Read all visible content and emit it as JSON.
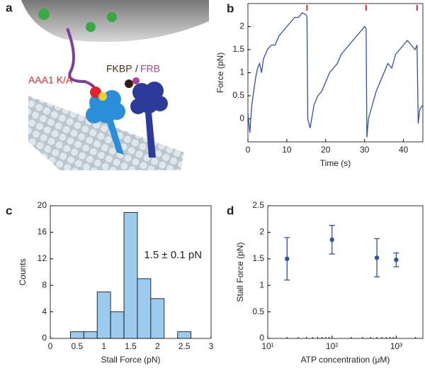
{
  "illustration": {
    "panel_label": "a",
    "labels": [
      "AAA1 K/A",
      "FKBP",
      "/",
      "FRB"
    ]
  },
  "chart_data": [
    {
      "panel_label": "b",
      "type": "line",
      "xlabel": "Time (s)",
      "ylabel": "Force (pN)",
      "x": [
        0,
        0.5,
        1,
        1.5,
        2,
        2.5,
        3,
        3.5,
        4,
        5,
        6,
        7,
        8,
        9,
        10,
        11,
        12,
        13,
        14,
        15,
        15.2,
        15.4,
        16,
        17,
        18,
        19,
        20,
        21,
        22,
        23,
        24,
        25,
        26,
        27,
        28,
        29,
        30,
        30.4,
        30.6,
        31,
        32,
        33,
        34,
        35,
        36,
        37,
        38,
        39,
        40,
        41,
        42,
        43,
        43.5,
        43.8,
        44.2,
        45
      ],
      "series": [
        {
          "color": "#2f4fb0",
          "values": [
            0.1,
            -0.3,
            0.3,
            0.6,
            0.9,
            1.1,
            1.2,
            1.0,
            1.3,
            1.5,
            1.6,
            1.6,
            1.8,
            1.9,
            2.0,
            2.1,
            2.2,
            2.2,
            2.3,
            2.25,
            2.2,
            0.0,
            -0.2,
            0.3,
            0.5,
            0.6,
            0.8,
            1.0,
            1.1,
            1.2,
            1.4,
            1.5,
            1.6,
            1.7,
            1.8,
            1.9,
            2.0,
            1.95,
            -0.4,
            0.0,
            0.3,
            0.6,
            0.8,
            1.0,
            1.2,
            1.1,
            1.4,
            1.5,
            1.6,
            1.7,
            1.6,
            1.5,
            1.6,
            -0.1,
            0.2,
            0.3
          ]
        }
      ],
      "stall_markers": {
        "x": [
          15.2,
          30.4,
          43.5
        ],
        "color": "#e8262c"
      },
      "xlim": [
        0,
        45
      ],
      "xticks": [
        0,
        10,
        20,
        30,
        40
      ],
      "ylim": [
        -0.5,
        2.5
      ],
      "yticks": [
        0,
        0.5,
        1,
        1.5,
        2
      ]
    },
    {
      "panel_label": "c",
      "type": "histogram",
      "xlabel": "Stall Force (pN)",
      "ylabel": "Counts",
      "bins": [
        0.375,
        0.625,
        0.875,
        1.125,
        1.375,
        1.625,
        1.875,
        2.125,
        2.375,
        2.625
      ],
      "values": [
        1,
        1,
        7,
        4,
        19,
        9,
        6,
        0,
        1
      ],
      "color": "#9ccbee",
      "annotation": "1.5 ± 0.1 pN",
      "xlim": [
        0,
        3
      ],
      "xticks": [
        0,
        0.5,
        1,
        1.5,
        2,
        2.5,
        3
      ],
      "ylim": [
        0,
        20
      ],
      "yticks": [
        0,
        4,
        8,
        12,
        16,
        20
      ]
    },
    {
      "panel_label": "d",
      "type": "scatter",
      "xlabel": "ATP concentration (μM)",
      "ylabel": "Stall Force (pN)",
      "x": [
        20,
        100,
        500,
        1000
      ],
      "values": [
        1.5,
        1.86,
        1.52,
        1.48
      ],
      "errors": [
        0.4,
        0.27,
        0.36,
        0.13
      ],
      "color": "#2f5597",
      "xscale": "log",
      "xlim": [
        10,
        2600
      ],
      "xticks": [
        {
          "value": 10,
          "label": "10¹"
        },
        {
          "value": 100,
          "label": "10²"
        },
        {
          "value": 1000,
          "label": "10³"
        }
      ],
      "ylim": [
        0,
        2.5
      ],
      "yticks": [
        0,
        0.5,
        1,
        1.5,
        2,
        2.5
      ]
    }
  ]
}
